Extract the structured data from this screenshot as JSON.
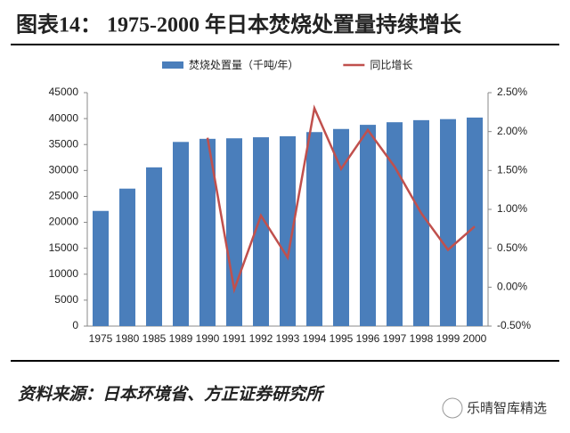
{
  "chart_data": {
    "type": "bar",
    "title": "图表14：  1975-2000 年日本焚烧处置量持续增长",
    "source": "资料来源：日本环境省、方正证券研究所",
    "watermark": "乐晴智库精选",
    "categories": [
      "1975",
      "1980",
      "1985",
      "1989",
      "1990",
      "1991",
      "1992",
      "1993",
      "1994",
      "1995",
      "1996",
      "1997",
      "1998",
      "1999",
      "2000"
    ],
    "series": [
      {
        "name": "焚烧处置量（千吨/年）",
        "type": "bar",
        "color": "#4a7ebb",
        "values": [
          22200,
          26500,
          30600,
          35500,
          36100,
          36200,
          36400,
          36600,
          37400,
          38000,
          38800,
          39300,
          39700,
          39900,
          40200
        ]
      },
      {
        "name": "同比增长",
        "type": "line",
        "axis": "y2",
        "color": "#c0504d",
        "values": [
          null,
          null,
          null,
          null,
          1.92,
          -0.03,
          0.92,
          0.38,
          2.3,
          1.52,
          2.02,
          1.55,
          0.95,
          0.48,
          0.78
        ]
      }
    ],
    "ylim": [
      0,
      45000
    ],
    "yticks": [
      0,
      5000,
      10000,
      15000,
      20000,
      25000,
      30000,
      35000,
      40000,
      45000
    ],
    "y2lim": [
      -0.5,
      2.5
    ],
    "y2ticks": [
      {
        "value": -0.5,
        "label": "-0.50%"
      },
      {
        "value": 0,
        "label": "0.00%"
      },
      {
        "value": 0.5,
        "label": "0.50%"
      },
      {
        "value": 1,
        "label": "1.00%"
      },
      {
        "value": 1.5,
        "label": "1.50%"
      },
      {
        "value": 2,
        "label": "2.00%"
      },
      {
        "value": 2.5,
        "label": "2.50%"
      }
    ],
    "legend": "top"
  }
}
